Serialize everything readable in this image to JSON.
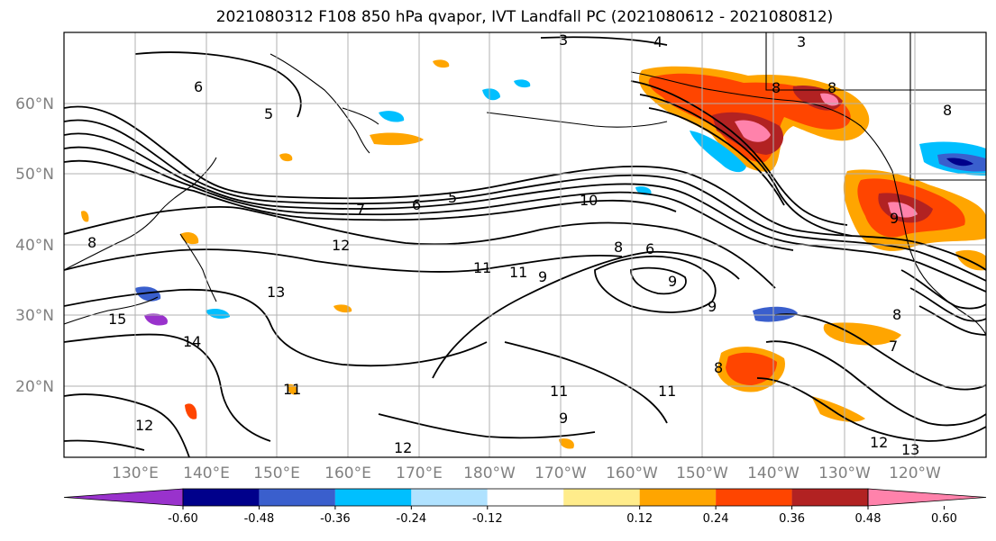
{
  "title": "2021080312 F108 850 hPa qvapor, IVT Landfall PC (2021080612 - 2021080812)",
  "lat_labels": [
    "60°N",
    "50°N",
    "40°N",
    "30°N",
    "20°N"
  ],
  "lon_labels": [
    "130°E",
    "140°E",
    "150°E",
    "160°E",
    "170°E",
    "180°W",
    "170°W",
    "160°W",
    "150°W",
    "140°W",
    "130°W",
    "120°W"
  ],
  "colorbar": {
    "colors": [
      "#9932cc",
      "#00008b",
      "#3a5fcd",
      "#00bfff",
      "#b0e2ff",
      "#ffffff",
      "#ffec8b",
      "#ffa500",
      "#ff4500",
      "#b22222",
      "#ff82ab"
    ],
    "ticks": [
      "-0.60",
      "-0.48",
      "-0.36",
      "-0.24",
      "-0.12",
      "0.12",
      "0.24",
      "0.36",
      "0.48",
      "0.60"
    ]
  },
  "contour_labels": [
    "3",
    "4",
    "3",
    "6",
    "5",
    "8",
    "8",
    "8",
    "5",
    "6",
    "7",
    "10",
    "12",
    "6",
    "8",
    "9",
    "9",
    "11",
    "11",
    "8",
    "9",
    "13",
    "15",
    "14",
    "11",
    "12",
    "12",
    "11",
    "9",
    "11",
    "8",
    "12",
    "13",
    "7",
    "8",
    "9"
  ]
}
